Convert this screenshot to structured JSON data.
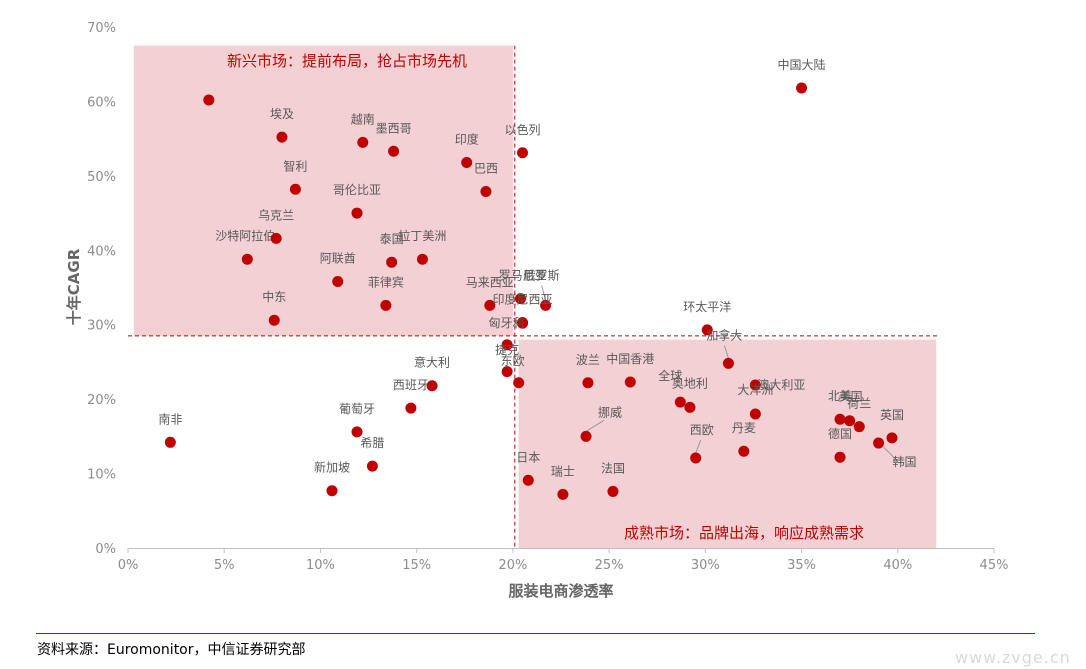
{
  "chart_data": {
    "type": "scatter",
    "xlabel": "服装电商渗透率",
    "ylabel": "十年CAGR",
    "xlim": [
      0,
      45
    ],
    "ylim": [
      0,
      70
    ],
    "x_ticks": [
      "0%",
      "5%",
      "10%",
      "15%",
      "20%",
      "25%",
      "30%",
      "35%",
      "40%",
      "45%"
    ],
    "y_ticks": [
      "0%",
      "10%",
      "20%",
      "30%",
      "40%",
      "50%",
      "60%",
      "70%"
    ],
    "threshold_x": 20.1,
    "threshold_y": 28.5,
    "zones": [
      {
        "label": "新兴市场：提前布局，抢占市场先机",
        "x": [
          0.3,
          20.0
        ],
        "y": [
          28.5,
          67.5
        ],
        "color": "#f2d0d3"
      },
      {
        "label": "成熟市场：品牌出海，响应成熟需求",
        "x": [
          20.3,
          42.0
        ],
        "y": [
          0,
          28.0
        ],
        "color": "#f2d0d3"
      }
    ],
    "point_color": "#c00000",
    "points": [
      {
        "name": "中国大陆",
        "x": 35.0,
        "y": 61.8
      },
      {
        "name": "南非",
        "x": 2.2,
        "y": 14.2
      },
      {
        "name": "沙特阿拉伯",
        "x": 6.2,
        "y": 38.8
      },
      {
        "name": "",
        "x": 4.2,
        "y": 60.2
      },
      {
        "name": "埃及",
        "x": 8.0,
        "y": 55.2
      },
      {
        "name": "智利",
        "x": 8.7,
        "y": 48.2
      },
      {
        "name": "乌克兰",
        "x": 7.7,
        "y": 41.6
      },
      {
        "name": "中东",
        "x": 7.6,
        "y": 30.6
      },
      {
        "name": "越南",
        "x": 12.2,
        "y": 54.5
      },
      {
        "name": "墨西哥",
        "x": 13.8,
        "y": 53.3
      },
      {
        "name": "哥伦比亚",
        "x": 11.9,
        "y": 45.0
      },
      {
        "name": "阿联酋",
        "x": 10.9,
        "y": 35.8
      },
      {
        "name": "泰国",
        "x": 13.7,
        "y": 38.4
      },
      {
        "name": "拉丁美洲",
        "x": 15.3,
        "y": 38.8
      },
      {
        "name": "菲律宾",
        "x": 13.4,
        "y": 32.6
      },
      {
        "name": "印度",
        "x": 17.6,
        "y": 51.8
      },
      {
        "name": "巴西",
        "x": 18.6,
        "y": 47.9
      },
      {
        "name": "以色列",
        "x": 20.5,
        "y": 53.1
      },
      {
        "name": "马来西亚",
        "x": 18.8,
        "y": 32.6
      },
      {
        "name": "罗马尼亚",
        "x": 20.4,
        "y": 33.5
      },
      {
        "name": "俄罗斯",
        "x": 21.7,
        "y": 32.6
      },
      {
        "name": "印度尼西亚",
        "x": 20.5,
        "y": 30.3
      },
      {
        "name": "匈牙利",
        "x": 20.5,
        "y": 30.2
      },
      {
        "name": "捷克",
        "x": 19.7,
        "y": 27.3
      },
      {
        "name": "东欧",
        "x": 20.3,
        "y": 22.2
      },
      {
        "name": "",
        "x": 19.7,
        "y": 23.7
      },
      {
        "name": "意大利",
        "x": 15.8,
        "y": 21.8
      },
      {
        "name": "西班牙",
        "x": 14.7,
        "y": 18.8
      },
      {
        "name": "葡萄牙",
        "x": 11.9,
        "y": 15.6
      },
      {
        "name": "希腊",
        "x": 12.7,
        "y": 11.0
      },
      {
        "name": "新加坡",
        "x": 10.6,
        "y": 7.7
      },
      {
        "name": "波兰",
        "x": 23.9,
        "y": 22.2
      },
      {
        "name": "中国香港",
        "x": 26.1,
        "y": 22.3
      },
      {
        "name": "挪威",
        "x": 23.8,
        "y": 15.0
      },
      {
        "name": "日本",
        "x": 20.8,
        "y": 9.1
      },
      {
        "name": "瑞士",
        "x": 22.6,
        "y": 7.2
      },
      {
        "name": "法国",
        "x": 25.2,
        "y": 7.6
      },
      {
        "name": "环太平洋",
        "x": 30.1,
        "y": 29.3
      },
      {
        "name": "加拿大",
        "x": 31.2,
        "y": 24.8
      },
      {
        "name": "澳大利亚",
        "x": 32.6,
        "y": 21.9
      },
      {
        "name": "全球",
        "x": 28.7,
        "y": 19.6
      },
      {
        "name": "奥地利",
        "x": 29.2,
        "y": 18.9
      },
      {
        "name": "大洋洲",
        "x": 32.6,
        "y": 18.0
      },
      {
        "name": "西欧",
        "x": 29.5,
        "y": 12.1
      },
      {
        "name": "丹麦",
        "x": 32.0,
        "y": 13.0
      },
      {
        "name": "北美",
        "x": 37.0,
        "y": 17.3
      },
      {
        "name": "美国",
        "x": 37.5,
        "y": 17.1
      },
      {
        "name": "荷兰",
        "x": 38.0,
        "y": 16.3
      },
      {
        "name": "英国",
        "x": 39.7,
        "y": 14.8
      },
      {
        "name": "韩国",
        "x": 39.0,
        "y": 14.1
      },
      {
        "name": "德国",
        "x": 37.0,
        "y": 12.2
      }
    ]
  },
  "footer": {
    "source": "资料来源：Euromonitor，中信证券研究部",
    "watermark": "www.zvge.cn"
  }
}
